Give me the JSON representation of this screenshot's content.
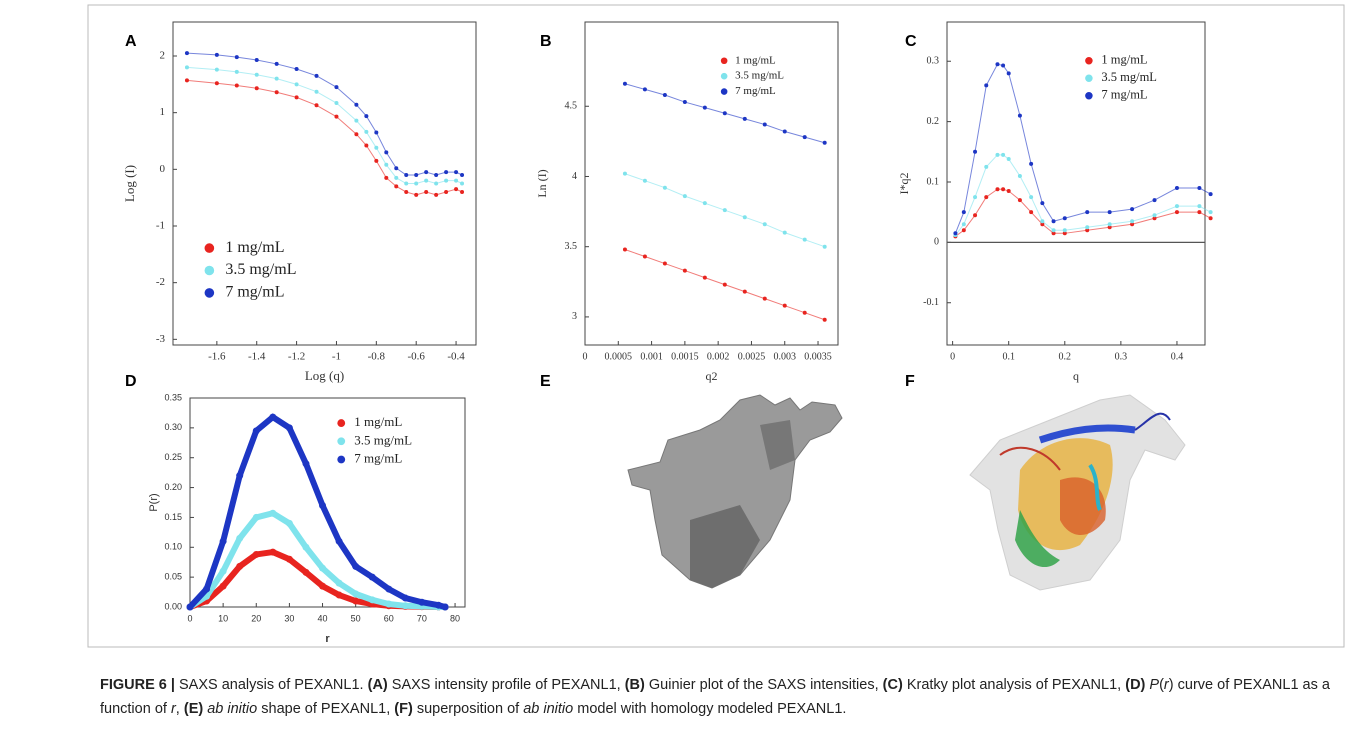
{
  "chart_data": [
    {
      "type": "scatter",
      "panel": "A",
      "x_label": "Log (q)",
      "y_label": "Log (I)",
      "legend": "lower left",
      "xlim": [
        -1.82,
        -0.3
      ],
      "ylim": [
        -3.1,
        2.6
      ],
      "xticks": [
        -1.6,
        -1.4,
        -1.2,
        -1,
        -0.8,
        -0.6,
        -0.4
      ],
      "yticks": [
        -3,
        -2,
        -1,
        0,
        1,
        2
      ],
      "x": [
        -1.75,
        -1.6,
        -1.5,
        -1.4,
        -1.3,
        -1.2,
        -1.1,
        -1.0,
        -0.9,
        -0.85,
        -0.8,
        -0.75,
        -0.7,
        -0.65,
        -0.6,
        -0.55,
        -0.5,
        -0.45,
        -0.4,
        -0.37
      ],
      "series": [
        {
          "name": "1 mg/mL",
          "color": "#e8241f",
          "values": [
            1.57,
            1.52,
            1.48,
            1.43,
            1.36,
            1.27,
            1.13,
            0.93,
            0.62,
            0.42,
            0.15,
            -0.15,
            -0.3,
            -0.4,
            -0.45,
            -0.4,
            -0.45,
            -0.4,
            -0.35,
            -0.4
          ]
        },
        {
          "name": "3.5 mg/mL",
          "color": "#7fe3ec",
          "values": [
            1.8,
            1.76,
            1.72,
            1.67,
            1.6,
            1.5,
            1.37,
            1.17,
            0.86,
            0.66,
            0.38,
            0.08,
            -0.15,
            -0.25,
            -0.25,
            -0.2,
            -0.25,
            -0.2,
            -0.2,
            -0.25
          ]
        },
        {
          "name": "7 mg/mL",
          "color": "#1d36c4",
          "values": [
            2.05,
            2.02,
            1.98,
            1.93,
            1.86,
            1.77,
            1.65,
            1.45,
            1.14,
            0.94,
            0.65,
            0.3,
            0.02,
            -0.1,
            -0.1,
            -0.05,
            -0.1,
            -0.05,
            -0.05,
            -0.1
          ]
        }
      ]
    },
    {
      "type": "scatter",
      "panel": "B",
      "x_label": "q2",
      "y_label": "Ln (I)",
      "legend": "upper right",
      "xlim": [
        0,
        0.0038
      ],
      "ylim": [
        2.8,
        5.1
      ],
      "xticks": [
        0,
        0.0005,
        0.001,
        0.0015,
        0.002,
        0.0025,
        0.003,
        0.0035
      ],
      "yticks": [
        3,
        3.5,
        4,
        4.5
      ],
      "x": [
        0.0006,
        0.0009,
        0.0012,
        0.0015,
        0.0018,
        0.0021,
        0.0024,
        0.0027,
        0.003,
        0.0033,
        0.0036
      ],
      "series": [
        {
          "name": "1 mg/mL",
          "color": "#e8241f",
          "values": [
            3.48,
            3.43,
            3.38,
            3.33,
            3.28,
            3.23,
            3.18,
            3.13,
            3.08,
            3.03,
            2.98
          ]
        },
        {
          "name": "3.5 mg/mL",
          "color": "#7fe3ec",
          "values": [
            4.02,
            3.97,
            3.92,
            3.86,
            3.81,
            3.76,
            3.71,
            3.66,
            3.6,
            3.55,
            3.5
          ]
        },
        {
          "name": "7 mg/mL",
          "color": "#1d36c4",
          "values": [
            4.66,
            4.62,
            4.58,
            4.53,
            4.49,
            4.45,
            4.41,
            4.37,
            4.32,
            4.28,
            4.24
          ]
        }
      ]
    },
    {
      "type": "scatter",
      "panel": "C",
      "x_label": "q",
      "y_label": "I*q2",
      "legend": "upper right",
      "zero_line": true,
      "xlim": [
        -0.01,
        0.45
      ],
      "ylim": [
        -0.17,
        0.365
      ],
      "xticks": [
        0,
        0.1,
        0.2,
        0.3,
        0.4
      ],
      "yticks": [
        -0.1,
        0,
        0.1,
        0.2,
        0.3
      ],
      "x": [
        0.005,
        0.02,
        0.04,
        0.06,
        0.08,
        0.09,
        0.1,
        0.12,
        0.14,
        0.16,
        0.18,
        0.2,
        0.24,
        0.28,
        0.32,
        0.36,
        0.4,
        0.44,
        0.46
      ],
      "series": [
        {
          "name": "1 mg/mL",
          "color": "#e8241f",
          "values": [
            0.01,
            0.02,
            0.045,
            0.075,
            0.088,
            0.088,
            0.085,
            0.07,
            0.05,
            0.03,
            0.015,
            0.015,
            0.02,
            0.025,
            0.03,
            0.04,
            0.05,
            0.05,
            0.04
          ]
        },
        {
          "name": "3.5 mg/mL",
          "color": "#7fe3ec",
          "values": [
            0.012,
            0.03,
            0.075,
            0.125,
            0.145,
            0.145,
            0.138,
            0.11,
            0.075,
            0.035,
            0.02,
            0.02,
            0.025,
            0.03,
            0.035,
            0.045,
            0.06,
            0.06,
            0.05
          ]
        },
        {
          "name": "7 mg/mL",
          "color": "#1d36c4",
          "values": [
            0.015,
            0.05,
            0.15,
            0.26,
            0.295,
            0.293,
            0.28,
            0.21,
            0.13,
            0.065,
            0.035,
            0.04,
            0.05,
            0.05,
            0.055,
            0.07,
            0.09,
            0.09,
            0.08
          ]
        }
      ]
    },
    {
      "type": "line",
      "panel": "D",
      "x_label": "r",
      "y_label": "P(r)",
      "legend": "upper right",
      "xlim": [
        0,
        83
      ],
      "ylim": [
        0,
        0.35
      ],
      "xticks": [
        0,
        10,
        20,
        30,
        40,
        50,
        60,
        70,
        80
      ],
      "yticks": [
        {
          "value": 0,
          "label": "0.00"
        },
        {
          "value": 0.05,
          "label": "0.05"
        },
        {
          "value": 0.1,
          "label": "0.10"
        },
        {
          "value": 0.15,
          "label": "0.15"
        },
        {
          "value": 0.2,
          "label": "0.20"
        },
        {
          "value": 0.25,
          "label": "0.25"
        },
        {
          "value": 0.3,
          "label": "0.30"
        },
        {
          "value": 0.35,
          "label": "0.35"
        }
      ],
      "x": [
        0,
        5,
        10,
        15,
        20,
        25,
        30,
        35,
        40,
        45,
        50,
        55,
        60,
        65,
        70,
        75,
        77
      ],
      "series": [
        {
          "name": "1 mg/mL",
          "color": "#e8241f",
          "values": [
            0,
            0.01,
            0.035,
            0.068,
            0.088,
            0.092,
            0.08,
            0.058,
            0.035,
            0.02,
            0.01,
            0.005,
            0.002,
            0.001,
            0.0005,
            0,
            0
          ]
        },
        {
          "name": "3.5 mg/mL",
          "color": "#7fe3ec",
          "values": [
            0,
            0.018,
            0.06,
            0.115,
            0.15,
            0.157,
            0.14,
            0.1,
            0.065,
            0.04,
            0.022,
            0.012,
            0.005,
            0.002,
            0.001,
            0,
            0
          ]
        },
        {
          "name": "7 mg/mL",
          "color": "#1d36c4",
          "values": [
            0,
            0.03,
            0.11,
            0.22,
            0.295,
            0.318,
            0.3,
            0.24,
            0.17,
            0.11,
            0.068,
            0.05,
            0.03,
            0.015,
            0.008,
            0.003,
            0
          ]
        }
      ]
    }
  ],
  "images": [
    {
      "panel": "E"
    },
    {
      "panel": "F"
    }
  ],
  "caption": [
    "FIGURE 6 |",
    "SAXS analysis of PEXANL1.",
    "(A)",
    "SAXS intensity profile of PEXANL1,",
    "(B)",
    "Guinier plot of the SAXS intensities,",
    "(C)",
    "Kratky plot analysis of PEXANL1,",
    "(D)",
    "P",
    "(",
    "r",
    ")",
    "curve of PEXANL1 as a function of",
    "r",
    ",",
    "(E)",
    "ab initio",
    "shape of PEXANL1,",
    "(F)",
    "superposition of",
    "ab initio",
    "model with homology modeled PEXANL1."
  ]
}
